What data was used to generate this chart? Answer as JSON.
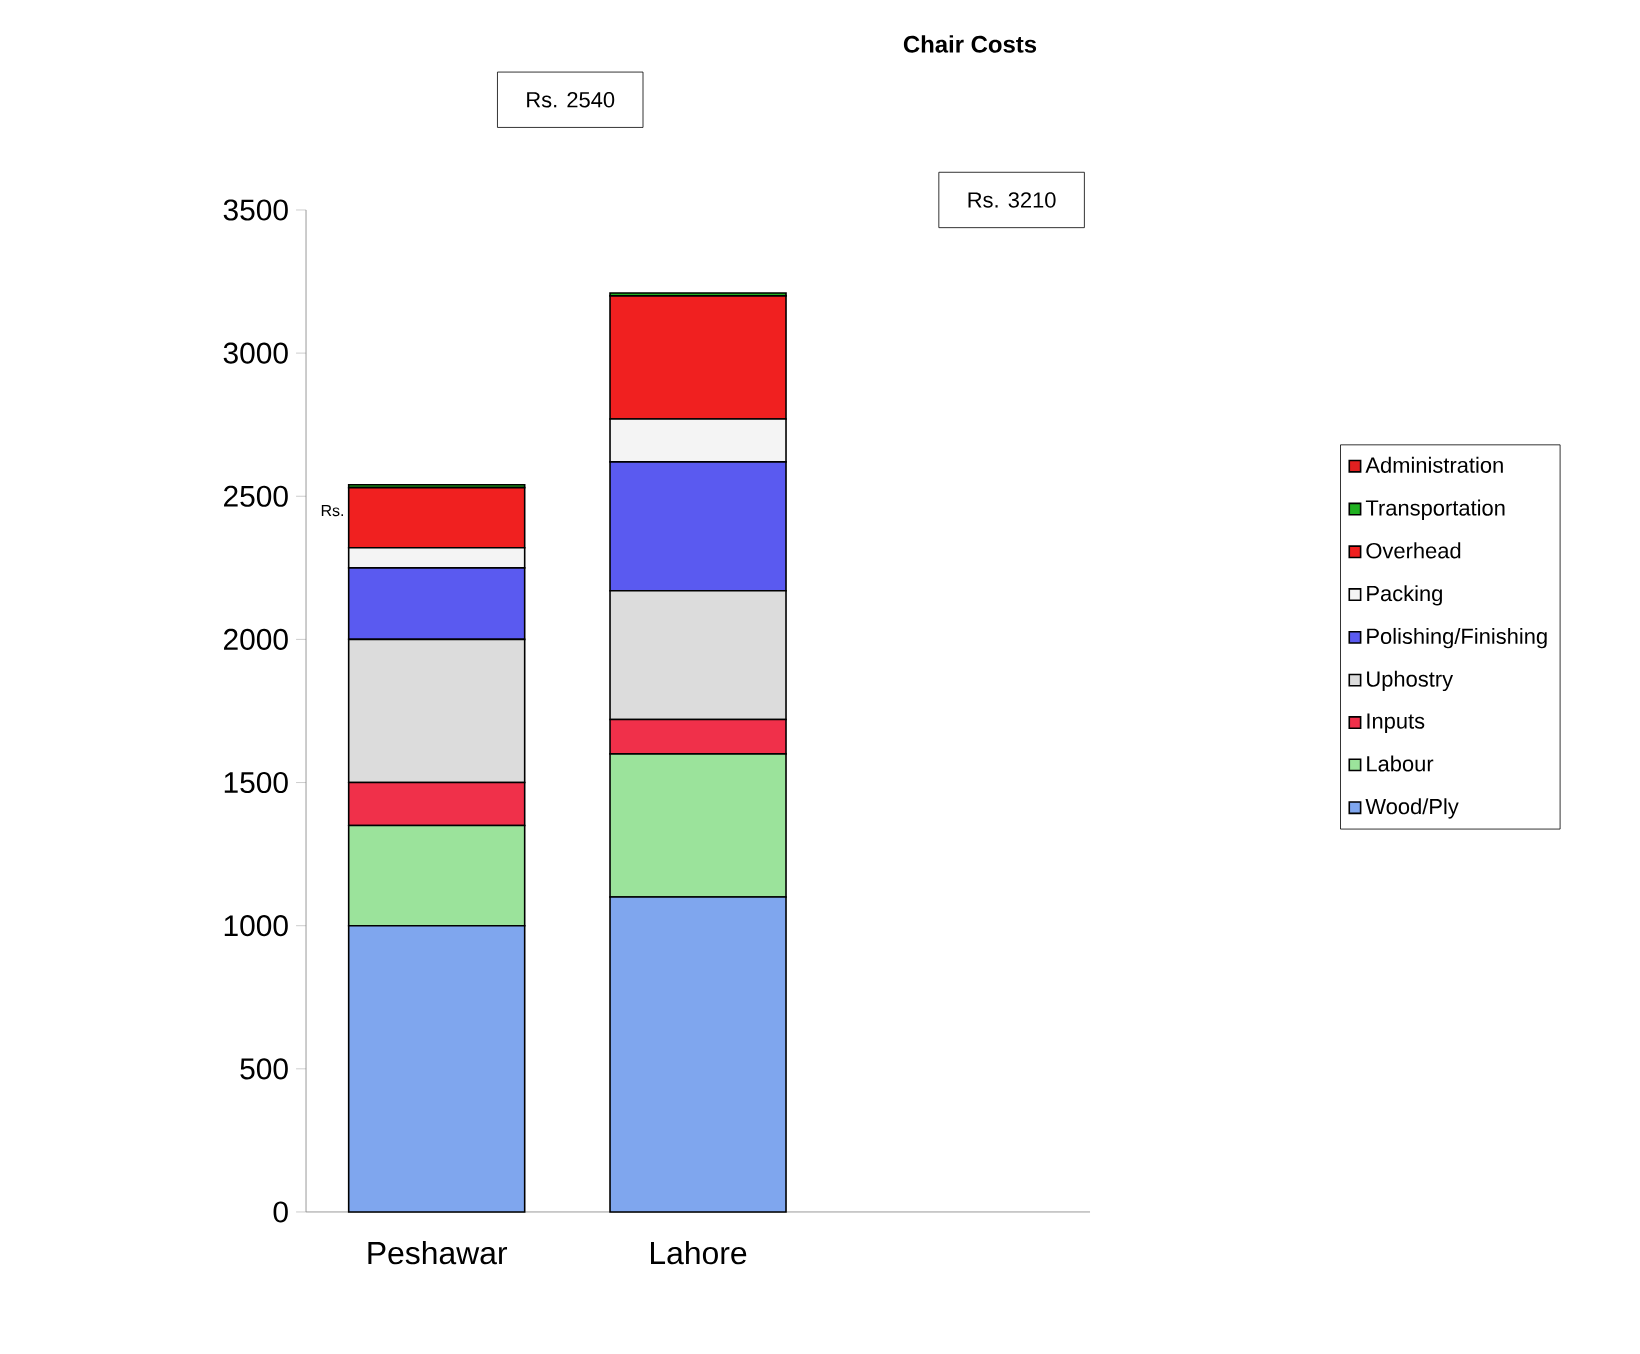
{
  "chart_data": {
    "type": "bar",
    "title": "Chair Costs",
    "stacked": true,
    "legend": "right",
    "categories": [
      "Peshawar",
      "Lahore",
      null
    ],
    "series": [
      {
        "name": "Wood/Ply",
        "color": "#7fa6ee",
        "values": [
          1000,
          1100,
          null
        ]
      },
      {
        "name": "Labour",
        "color": "#9be39b",
        "values": [
          350,
          500,
          null
        ]
      },
      {
        "name": "Inputs",
        "color": "#f0304a",
        "values": [
          150,
          120,
          null
        ]
      },
      {
        "name": "Uphostry",
        "color": "#dcdcdc",
        "values": [
          500,
          450,
          null
        ]
      },
      {
        "name": "Polishing/Finishing",
        "color": "#5a5af0",
        "values": [
          250,
          450,
          null
        ]
      },
      {
        "name": "Packing",
        "color": "#f4f4f4",
        "values": [
          70,
          150,
          null
        ]
      },
      {
        "name": "Overhead",
        "color": "#f02020",
        "values": [
          210,
          430,
          null
        ]
      },
      {
        "name": "Transportation",
        "color": "#20b020",
        "values": [
          10,
          10,
          null
        ]
      },
      {
        "name": "Administration",
        "color": "#e02020",
        "values": [
          0,
          0,
          null
        ]
      }
    ],
    "ylim": [
      0,
      3500
    ],
    "yticks": [
      0,
      500,
      1000,
      1500,
      2000,
      2500,
      3000,
      3500
    ],
    "annotations": [
      "Rs. 2540",
      "Rs. 3210",
      "Rs."
    ]
  }
}
